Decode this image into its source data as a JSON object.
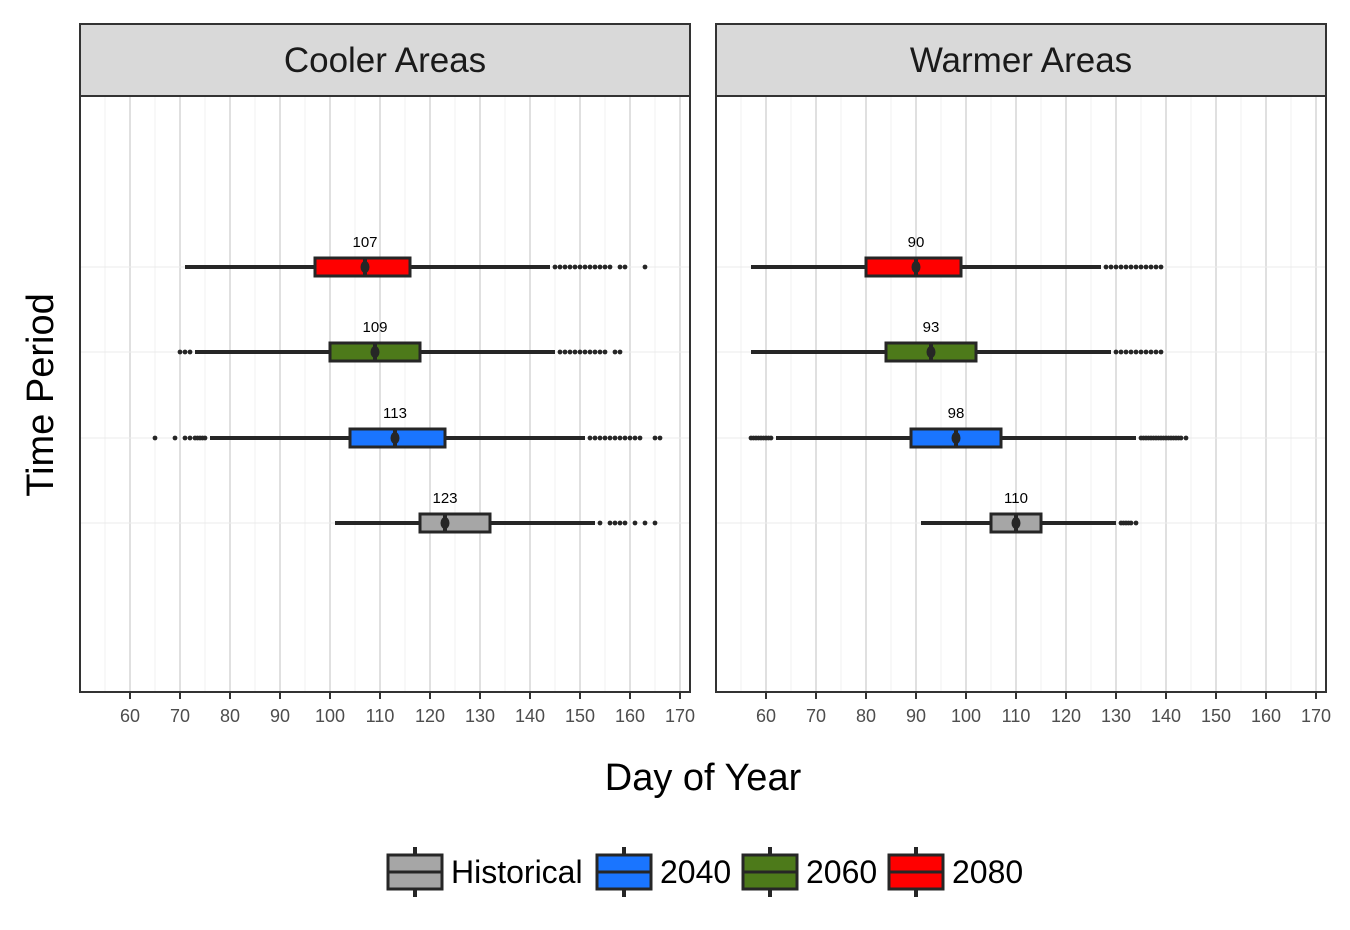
{
  "chart_data": {
    "type": "boxplot",
    "xlabel": "Day of Year",
    "ylabel": "Time Period",
    "xlim": [
      50,
      172
    ],
    "x_ticks": [
      60,
      70,
      80,
      90,
      100,
      110,
      120,
      130,
      140,
      150,
      160,
      170
    ],
    "grid": true,
    "orientation": "horizontal",
    "legend_position": "bottom",
    "categories": [
      "Historical",
      "2040",
      "2060",
      "2080"
    ],
    "colors": {
      "Historical": "#a6a6a6",
      "2040": "#1a75ff",
      "2060": "#4d7a1a",
      "2080": "#ff0000"
    },
    "panels": [
      {
        "title": "Cooler Areas",
        "series": [
          {
            "name": "Historical",
            "whisker_low": 101,
            "q1": 118,
            "median": 123,
            "q3": 132,
            "whisker_high": 153,
            "median_label": "123",
            "outliers": [
              154,
              156,
              157,
              158,
              159,
              161,
              163,
              165
            ]
          },
          {
            "name": "2040",
            "whisker_low": 76,
            "q1": 104,
            "median": 113,
            "q3": 123,
            "whisker_high": 151,
            "median_label": "113",
            "outliers": [
              65,
              69,
              71,
              72,
              73,
              73.5,
              74,
              74.5,
              75,
              152,
              153,
              154,
              155,
              156,
              157,
              158,
              159,
              160,
              161,
              162,
              165,
              166
            ]
          },
          {
            "name": "2060",
            "whisker_low": 73,
            "q1": 100,
            "median": 109,
            "q3": 118,
            "whisker_high": 145,
            "median_label": "109",
            "outliers": [
              70,
              71,
              72,
              146,
              147,
              148,
              149,
              150,
              151,
              152,
              153,
              154,
              155,
              157,
              158
            ]
          },
          {
            "name": "2080",
            "whisker_low": 71,
            "q1": 97,
            "median": 107,
            "q3": 116,
            "whisker_high": 144,
            "median_label": "107",
            "outliers": [
              145,
              146,
              147,
              148,
              149,
              150,
              151,
              152,
              153,
              154,
              155,
              156,
              158,
              159,
              163
            ]
          }
        ]
      },
      {
        "title": "Warmer Areas",
        "series": [
          {
            "name": "Historical",
            "whisker_low": 91,
            "q1": 105,
            "median": 110,
            "q3": 115,
            "whisker_high": 130,
            "median_label": "110",
            "outliers": [
              131,
              131.5,
              132,
              132.5,
              133,
              134
            ]
          },
          {
            "name": "2040",
            "whisker_low": 62,
            "q1": 89,
            "median": 98,
            "q3": 107,
            "whisker_high": 134,
            "median_label": "98",
            "outliers": [
              57,
              57.5,
              58,
              58.5,
              59,
              59.5,
              60,
              60.5,
              61,
              135,
              135.5,
              136,
              136.5,
              137,
              137.5,
              138,
              138.5,
              139,
              139.5,
              140,
              140.5,
              141,
              141.5,
              142,
              142.5,
              143,
              144
            ]
          },
          {
            "name": "2060",
            "whisker_low": 57,
            "q1": 84,
            "median": 93,
            "q3": 102,
            "whisker_high": 129,
            "median_label": "93",
            "outliers": [
              130,
              131,
              132,
              133,
              134,
              135,
              136,
              137,
              138,
              139
            ]
          },
          {
            "name": "2080",
            "whisker_low": 57,
            "q1": 80,
            "median": 90,
            "q3": 99,
            "whisker_high": 127,
            "median_label": "90",
            "outliers": [
              128,
              129,
              130,
              131,
              132,
              133,
              134,
              135,
              136,
              137,
              138,
              139
            ]
          }
        ]
      }
    ]
  }
}
